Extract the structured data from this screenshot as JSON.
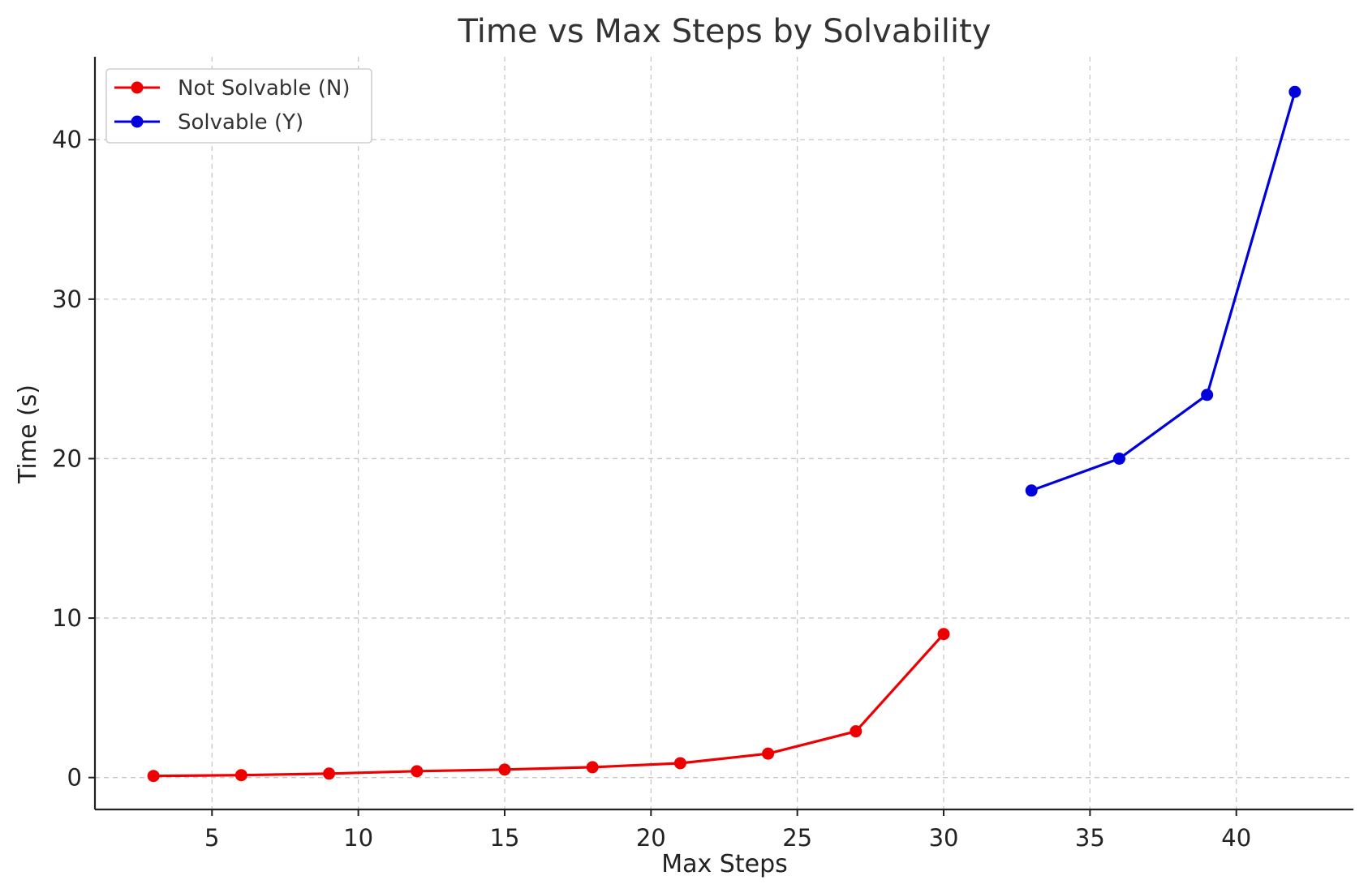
{
  "chart_data": {
    "type": "line",
    "title": "Time vs Max Steps by Solvability",
    "xlabel": "Max Steps",
    "ylabel": "Time (s)",
    "xlim": [
      1.0,
      44.0
    ],
    "ylim": [
      -2.0,
      45.2
    ],
    "xticks": [
      5,
      10,
      15,
      20,
      25,
      30,
      35,
      40
    ],
    "yticks": [
      0,
      10,
      20,
      30,
      40
    ],
    "grid": true,
    "legend_position": "top-left",
    "series": [
      {
        "name": "Not Solvable (N)",
        "color": "#ee0000",
        "x": [
          3,
          6,
          9,
          12,
          15,
          18,
          21,
          24,
          27,
          30
        ],
        "y": [
          0.1,
          0.15,
          0.25,
          0.4,
          0.5,
          0.65,
          0.9,
          1.5,
          2.9,
          9.0
        ]
      },
      {
        "name": "Solvable (Y)",
        "color": "#0000dd",
        "x": [
          33,
          36,
          39,
          42
        ],
        "y": [
          18.0,
          20.0,
          24.0,
          43.0
        ]
      }
    ]
  }
}
